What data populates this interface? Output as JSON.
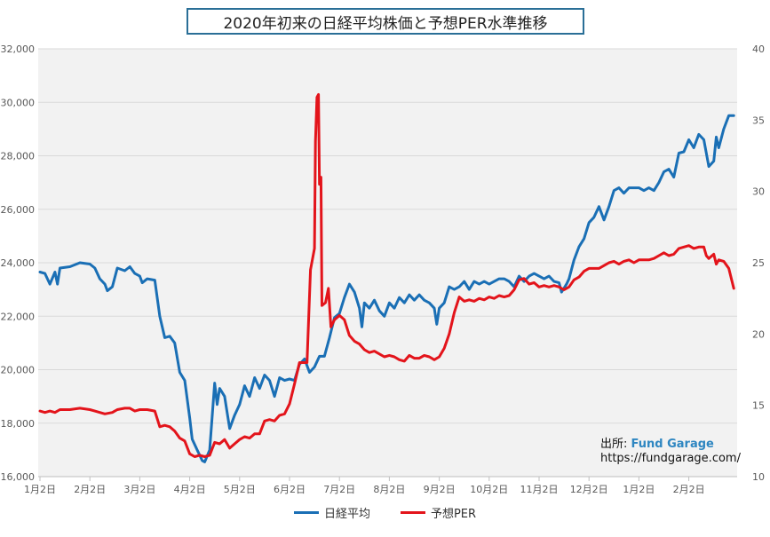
{
  "chart_data": {
    "type": "line",
    "title": "2020年初来の日経平均株価と予想PER水準推移",
    "x_ticks": [
      "1月2日",
      "2月2日",
      "3月2日",
      "4月2日",
      "5月2日",
      "6月2日",
      "7月2日",
      "8月2日",
      "9月2日",
      "10月2日",
      "11月2日",
      "12月2日",
      "1月2日",
      "2月2日"
    ],
    "y_left": {
      "min": 16000,
      "max": 32000,
      "step": 2000,
      "ticks": [
        "16,000",
        "18,000",
        "20,000",
        "22,000",
        "24,000",
        "26,000",
        "28,000",
        "30,000",
        "32,000"
      ]
    },
    "y_right": {
      "min": 10,
      "max": 40,
      "step": 5,
      "ticks": [
        "10",
        "15",
        "20",
        "25",
        "30",
        "35",
        "40"
      ]
    },
    "grid": "horizontal",
    "legend_position": "bottom",
    "series": [
      {
        "name": "日経平均",
        "axis": "left",
        "color": "#1a6fb5",
        "points": [
          [
            0.0,
            23650
          ],
          [
            0.1,
            23600
          ],
          [
            0.2,
            23200
          ],
          [
            0.3,
            23650
          ],
          [
            0.35,
            23200
          ],
          [
            0.4,
            23800
          ],
          [
            0.6,
            23850
          ],
          [
            0.8,
            24000
          ],
          [
            1.0,
            23950
          ],
          [
            1.1,
            23800
          ],
          [
            1.2,
            23400
          ],
          [
            1.3,
            23200
          ],
          [
            1.35,
            22950
          ],
          [
            1.45,
            23100
          ],
          [
            1.55,
            23800
          ],
          [
            1.7,
            23700
          ],
          [
            1.8,
            23850
          ],
          [
            1.9,
            23600
          ],
          [
            2.0,
            23500
          ],
          [
            2.05,
            23250
          ],
          [
            2.15,
            23400
          ],
          [
            2.3,
            23350
          ],
          [
            2.4,
            22000
          ],
          [
            2.5,
            21200
          ],
          [
            2.6,
            21250
          ],
          [
            2.7,
            21000
          ],
          [
            2.8,
            19900
          ],
          [
            2.9,
            19600
          ],
          [
            3.0,
            18200
          ],
          [
            3.05,
            17400
          ],
          [
            3.15,
            17000
          ],
          [
            3.25,
            16600
          ],
          [
            3.3,
            16550
          ],
          [
            3.4,
            17000
          ],
          [
            3.5,
            19500
          ],
          [
            3.55,
            18700
          ],
          [
            3.6,
            19300
          ],
          [
            3.7,
            19000
          ],
          [
            3.8,
            17800
          ],
          [
            3.9,
            18300
          ],
          [
            4.0,
            18700
          ],
          [
            4.1,
            19400
          ],
          [
            4.2,
            19000
          ],
          [
            4.3,
            19700
          ],
          [
            4.4,
            19300
          ],
          [
            4.5,
            19800
          ],
          [
            4.6,
            19600
          ],
          [
            4.7,
            19000
          ],
          [
            4.8,
            19700
          ],
          [
            4.9,
            19600
          ],
          [
            5.0,
            19650
          ],
          [
            5.1,
            19600
          ],
          [
            5.2,
            20200
          ],
          [
            5.3,
            20400
          ],
          [
            5.4,
            19900
          ],
          [
            5.5,
            20100
          ],
          [
            5.6,
            20500
          ],
          [
            5.7,
            20500
          ],
          [
            5.8,
            21200
          ],
          [
            5.9,
            21950
          ],
          [
            6.0,
            22100
          ],
          [
            6.1,
            22700
          ],
          [
            6.2,
            23200
          ],
          [
            6.3,
            22900
          ],
          [
            6.4,
            22300
          ],
          [
            6.45,
            21600
          ],
          [
            6.5,
            22500
          ],
          [
            6.6,
            22300
          ],
          [
            6.7,
            22600
          ],
          [
            6.8,
            22200
          ],
          [
            6.9,
            22000
          ],
          [
            7.0,
            22500
          ],
          [
            7.1,
            22300
          ],
          [
            7.2,
            22700
          ],
          [
            7.3,
            22500
          ],
          [
            7.4,
            22800
          ],
          [
            7.5,
            22600
          ],
          [
            7.6,
            22800
          ],
          [
            7.7,
            22600
          ],
          [
            7.8,
            22500
          ],
          [
            7.9,
            22300
          ],
          [
            7.95,
            21700
          ],
          [
            8.0,
            22300
          ],
          [
            8.1,
            22500
          ],
          [
            8.2,
            23100
          ],
          [
            8.3,
            23000
          ],
          [
            8.4,
            23100
          ],
          [
            8.5,
            23300
          ],
          [
            8.6,
            23000
          ],
          [
            8.7,
            23300
          ],
          [
            8.8,
            23200
          ],
          [
            8.9,
            23300
          ],
          [
            9.0,
            23200
          ],
          [
            9.1,
            23300
          ],
          [
            9.2,
            23400
          ],
          [
            9.3,
            23400
          ],
          [
            9.4,
            23300
          ],
          [
            9.5,
            23100
          ],
          [
            9.6,
            23500
          ],
          [
            9.7,
            23300
          ],
          [
            9.8,
            23500
          ],
          [
            9.9,
            23600
          ],
          [
            10.0,
            23500
          ],
          [
            10.1,
            23400
          ],
          [
            10.2,
            23500
          ],
          [
            10.3,
            23300
          ],
          [
            10.4,
            23250
          ],
          [
            10.45,
            22900
          ],
          [
            10.55,
            23200
          ],
          [
            10.6,
            23400
          ],
          [
            10.7,
            24100
          ],
          [
            10.8,
            24600
          ],
          [
            10.9,
            24900
          ],
          [
            11.0,
            25500
          ],
          [
            11.1,
            25700
          ],
          [
            11.2,
            26100
          ],
          [
            11.3,
            25600
          ],
          [
            11.4,
            26100
          ],
          [
            11.5,
            26700
          ],
          [
            11.6,
            26800
          ],
          [
            11.7,
            26600
          ],
          [
            11.8,
            26800
          ],
          [
            11.9,
            26800
          ],
          [
            12.0,
            26800
          ],
          [
            12.1,
            26700
          ],
          [
            12.2,
            26800
          ],
          [
            12.3,
            26700
          ],
          [
            12.4,
            27000
          ],
          [
            12.5,
            27400
          ],
          [
            12.6,
            27500
          ],
          [
            12.7,
            27200
          ],
          [
            12.8,
            28100
          ],
          [
            12.9,
            28150
          ],
          [
            13.0,
            28600
          ],
          [
            13.1,
            28300
          ],
          [
            13.2,
            28800
          ],
          [
            13.3,
            28600
          ],
          [
            13.4,
            27600
          ],
          [
            13.5,
            27800
          ],
          [
            13.55,
            28700
          ],
          [
            13.6,
            28300
          ],
          [
            13.7,
            29000
          ],
          [
            13.8,
            29500
          ],
          [
            13.9,
            29500
          ]
        ]
      },
      {
        "name": "予想PER",
        "axis": "right",
        "color": "#e3141b",
        "points": [
          [
            0.0,
            14.6
          ],
          [
            0.1,
            14.5
          ],
          [
            0.2,
            14.6
          ],
          [
            0.3,
            14.5
          ],
          [
            0.4,
            14.7
          ],
          [
            0.6,
            14.7
          ],
          [
            0.8,
            14.8
          ],
          [
            1.0,
            14.7
          ],
          [
            1.1,
            14.6
          ],
          [
            1.2,
            14.5
          ],
          [
            1.3,
            14.4
          ],
          [
            1.45,
            14.5
          ],
          [
            1.55,
            14.7
          ],
          [
            1.7,
            14.8
          ],
          [
            1.8,
            14.8
          ],
          [
            1.9,
            14.6
          ],
          [
            2.0,
            14.7
          ],
          [
            2.15,
            14.7
          ],
          [
            2.3,
            14.6
          ],
          [
            2.4,
            13.5
          ],
          [
            2.5,
            13.6
          ],
          [
            2.6,
            13.5
          ],
          [
            2.7,
            13.2
          ],
          [
            2.8,
            12.7
          ],
          [
            2.9,
            12.5
          ],
          [
            3.0,
            11.6
          ],
          [
            3.1,
            11.4
          ],
          [
            3.2,
            11.5
          ],
          [
            3.3,
            11.4
          ],
          [
            3.4,
            11.5
          ],
          [
            3.5,
            12.4
          ],
          [
            3.6,
            12.3
          ],
          [
            3.7,
            12.6
          ],
          [
            3.8,
            12.0
          ],
          [
            3.9,
            12.3
          ],
          [
            4.0,
            12.6
          ],
          [
            4.1,
            12.8
          ],
          [
            4.2,
            12.7
          ],
          [
            4.3,
            13.0
          ],
          [
            4.4,
            13.0
          ],
          [
            4.5,
            13.9
          ],
          [
            4.6,
            14.0
          ],
          [
            4.7,
            13.9
          ],
          [
            4.8,
            14.3
          ],
          [
            4.9,
            14.4
          ],
          [
            5.0,
            15.1
          ],
          [
            5.1,
            16.5
          ],
          [
            5.2,
            18.0
          ],
          [
            5.3,
            18.0
          ],
          [
            5.35,
            18.0
          ],
          [
            5.42,
            24.5
          ],
          [
            5.5,
            26.0
          ],
          [
            5.52,
            33.5
          ],
          [
            5.55,
            36.6
          ],
          [
            5.58,
            36.8
          ],
          [
            5.6,
            30.5
          ],
          [
            5.63,
            31.0
          ],
          [
            5.65,
            22.0
          ],
          [
            5.72,
            22.2
          ],
          [
            5.78,
            23.2
          ],
          [
            5.83,
            20.5
          ],
          [
            5.9,
            21.0
          ],
          [
            6.0,
            21.3
          ],
          [
            6.1,
            21.0
          ],
          [
            6.2,
            19.9
          ],
          [
            6.3,
            19.5
          ],
          [
            6.4,
            19.3
          ],
          [
            6.5,
            18.9
          ],
          [
            6.6,
            18.7
          ],
          [
            6.7,
            18.8
          ],
          [
            6.8,
            18.6
          ],
          [
            6.9,
            18.4
          ],
          [
            7.0,
            18.5
          ],
          [
            7.1,
            18.4
          ],
          [
            7.2,
            18.2
          ],
          [
            7.3,
            18.1
          ],
          [
            7.4,
            18.5
          ],
          [
            7.5,
            18.3
          ],
          [
            7.6,
            18.3
          ],
          [
            7.7,
            18.5
          ],
          [
            7.8,
            18.4
          ],
          [
            7.9,
            18.2
          ],
          [
            8.0,
            18.4
          ],
          [
            8.1,
            19.0
          ],
          [
            8.2,
            20.0
          ],
          [
            8.3,
            21.5
          ],
          [
            8.4,
            22.6
          ],
          [
            8.5,
            22.3
          ],
          [
            8.6,
            22.4
          ],
          [
            8.7,
            22.3
          ],
          [
            8.8,
            22.5
          ],
          [
            8.9,
            22.4
          ],
          [
            9.0,
            22.6
          ],
          [
            9.1,
            22.5
          ],
          [
            9.2,
            22.7
          ],
          [
            9.3,
            22.6
          ],
          [
            9.4,
            22.7
          ],
          [
            9.5,
            23.1
          ],
          [
            9.6,
            23.8
          ],
          [
            9.7,
            23.9
          ],
          [
            9.8,
            23.5
          ],
          [
            9.9,
            23.6
          ],
          [
            10.0,
            23.3
          ],
          [
            10.1,
            23.4
          ],
          [
            10.2,
            23.3
          ],
          [
            10.3,
            23.4
          ],
          [
            10.4,
            23.3
          ],
          [
            10.5,
            23.1
          ],
          [
            10.6,
            23.3
          ],
          [
            10.7,
            23.8
          ],
          [
            10.8,
            24.0
          ],
          [
            10.9,
            24.4
          ],
          [
            11.0,
            24.6
          ],
          [
            11.1,
            24.6
          ],
          [
            11.2,
            24.6
          ],
          [
            11.3,
            24.8
          ],
          [
            11.4,
            25.0
          ],
          [
            11.5,
            25.1
          ],
          [
            11.6,
            24.9
          ],
          [
            11.7,
            25.1
          ],
          [
            11.8,
            25.2
          ],
          [
            11.9,
            25.0
          ],
          [
            12.0,
            25.2
          ],
          [
            12.1,
            25.2
          ],
          [
            12.2,
            25.2
          ],
          [
            12.3,
            25.3
          ],
          [
            12.4,
            25.5
          ],
          [
            12.5,
            25.7
          ],
          [
            12.6,
            25.5
          ],
          [
            12.7,
            25.6
          ],
          [
            12.8,
            26.0
          ],
          [
            12.9,
            26.1
          ],
          [
            13.0,
            26.2
          ],
          [
            13.1,
            26.0
          ],
          [
            13.2,
            26.1
          ],
          [
            13.3,
            26.1
          ],
          [
            13.35,
            25.5
          ],
          [
            13.4,
            25.3
          ],
          [
            13.5,
            25.6
          ],
          [
            13.55,
            24.9
          ],
          [
            13.6,
            25.2
          ],
          [
            13.7,
            25.1
          ],
          [
            13.8,
            24.6
          ],
          [
            13.9,
            23.2
          ]
        ]
      }
    ]
  },
  "source": {
    "prefix": "出所:",
    "brand": "Fund Garage",
    "url": "https://fundgarage.com/"
  },
  "colors": {
    "plot_bg": "#f2f2f2",
    "grid": "#d9d9d9",
    "title_border": "#2a6f97"
  }
}
